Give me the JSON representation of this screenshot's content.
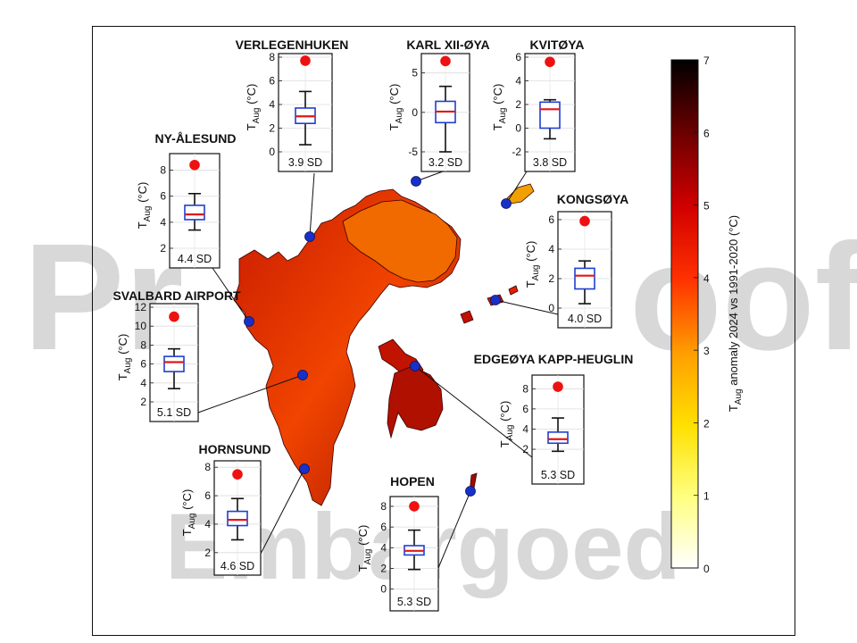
{
  "watermarks": {
    "left": "Pr",
    "right": "oof",
    "bottom": "Embargoed"
  },
  "colors": {
    "box": "#1f3fd0",
    "median": "#e01818",
    "dot_2024": "#ee1111",
    "station": "#1930c8"
  },
  "chart_data": {
    "type": "box",
    "colorbar": {
      "label_main": "T",
      "label_sub": "Aug",
      "label_rest": " anomaly 2024 vs 1991-2020 (°C)",
      "ticks": [
        "0",
        "1",
        "2",
        "3",
        "4",
        "5",
        "6",
        "7"
      ],
      "range": [
        0,
        7
      ]
    },
    "ylabel_main": "T",
    "ylabel_sub": "Aug",
    "ylabel_unit": " (°C)",
    "stations": [
      {
        "name": "VERLEGENHUKEN",
        "sd": "3.9 SD",
        "ylim": [
          0,
          8
        ],
        "ticks": [
          0,
          2,
          4,
          6,
          8
        ],
        "wlo": 0.6,
        "q1": 2.4,
        "med": 3.0,
        "q3": 3.7,
        "whi": 5.1,
        "y2024": 7.7
      },
      {
        "name": "KARL XII-ØYA",
        "sd": "3.2 SD",
        "ylim": [
          -5,
          7
        ],
        "ticks": [
          -5,
          0,
          5
        ],
        "wlo": -5.0,
        "q1": -1.3,
        "med": 0.1,
        "q3": 1.4,
        "whi": 3.3,
        "y2024": 6.5
      },
      {
        "name": "KVITØYA",
        "sd": "3.8 SD",
        "ylim": [
          -2,
          6
        ],
        "ticks": [
          -2,
          0,
          2,
          4,
          6
        ],
        "wlo": -0.9,
        "q1": 0.0,
        "med": 1.6,
        "q3": 2.2,
        "whi": 2.4,
        "y2024": 5.6
      },
      {
        "name": "NY-ÅLESUND",
        "sd": "4.4 SD",
        "ylim": [
          2,
          9
        ],
        "ticks": [
          2,
          4,
          6,
          8
        ],
        "wlo": 3.4,
        "q1": 4.2,
        "med": 4.6,
        "q3": 5.3,
        "whi": 6.2,
        "y2024": 8.4
      },
      {
        "name": "KONGSØYA",
        "sd": "4.0 SD",
        "ylim": [
          0,
          6.3
        ],
        "ticks": [
          0,
          2,
          4,
          6
        ],
        "wlo": 0.3,
        "q1": 1.3,
        "med": 2.2,
        "q3": 2.7,
        "whi": 3.2,
        "y2024": 5.9
      },
      {
        "name": "SVALBARD AIRPORT",
        "sd": "5.1 SD",
        "ylim": [
          2,
          12
        ],
        "ticks": [
          2,
          4,
          6,
          8,
          10,
          12
        ],
        "wlo": 3.4,
        "q1": 5.2,
        "med": 6.2,
        "q3": 6.8,
        "whi": 7.6,
        "y2024": 11.0
      },
      {
        "name": "EDGEØYA KAPP-HEUGLIN",
        "sd": "5.3 SD",
        "ylim": [
          0.5,
          9
        ],
        "ticks": [
          2,
          4,
          6,
          8
        ],
        "wlo": 1.8,
        "q1": 2.6,
        "med": 3.0,
        "q3": 3.7,
        "whi": 5.1,
        "y2024": 8.2
      },
      {
        "name": "HORNSUND",
        "sd": "4.6 SD",
        "ylim": [
          1.8,
          8.2
        ],
        "ticks": [
          2,
          4,
          6,
          8
        ],
        "wlo": 2.9,
        "q1": 3.9,
        "med": 4.3,
        "q3": 4.9,
        "whi": 5.8,
        "y2024": 7.5
      },
      {
        "name": "HOPEN",
        "sd": "5.3 SD",
        "ylim": [
          -0.2,
          8.6
        ],
        "ticks": [
          0,
          2,
          4,
          6,
          8
        ],
        "wlo": 1.9,
        "q1": 3.3,
        "med": 3.7,
        "q3": 4.2,
        "whi": 5.7,
        "y2024": 8.0
      }
    ]
  }
}
